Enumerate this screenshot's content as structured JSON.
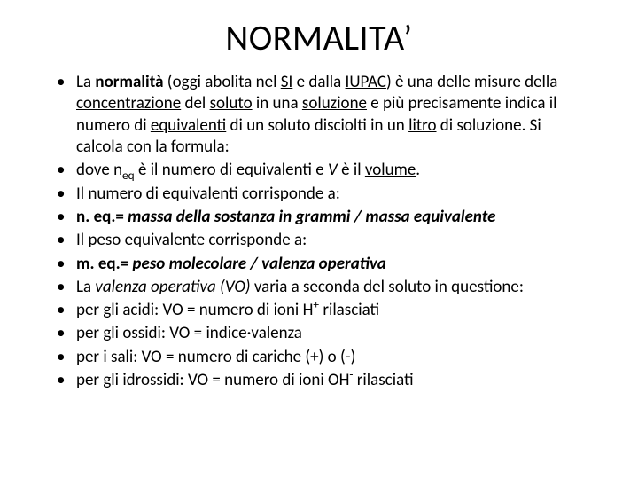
{
  "title": "NORMALITA’",
  "bullets": [
    {
      "parts": [
        {
          "t": "La "
        },
        {
          "t": "normalità",
          "b": true
        },
        {
          "t": " (oggi abolita nel "
        },
        {
          "t": "SI",
          "u": true
        },
        {
          "t": " e dalla "
        },
        {
          "t": "IUPAC",
          "u": true
        },
        {
          "t": ") è una delle misure della "
        },
        {
          "t": "concentrazione",
          "u": true
        },
        {
          "t": " del "
        },
        {
          "t": "soluto",
          "u": true
        },
        {
          "t": " in una "
        },
        {
          "t": "soluzione",
          "u": true
        },
        {
          "t": " e più precisamente indica il numero di "
        },
        {
          "t": "equivalenti",
          "u": true
        },
        {
          "t": " di un soluto disciolti in un "
        },
        {
          "t": "litro",
          "u": true
        },
        {
          "t": " di soluzione. Si calcola con la formula:"
        }
      ]
    },
    {
      "parts": [
        {
          "t": "dove n"
        },
        {
          "t": "eq",
          "sub": true
        },
        {
          "t": " è il numero di equivalenti e "
        },
        {
          "t": "V",
          "i": true
        },
        {
          "t": " è il "
        },
        {
          "t": "volume",
          "u": true
        },
        {
          "t": "."
        }
      ]
    },
    {
      "parts": [
        {
          "t": "Il numero di equivalenti corrisponde a:"
        }
      ]
    },
    {
      "parts": [
        {
          "t": " n. eq.= ",
          "b": true
        },
        {
          "t": "massa della sostanza in grammi / massa equivalente",
          "b": true,
          "i": true
        }
      ]
    },
    {
      "parts": [
        {
          "t": " Il peso equivalente corrisponde a:"
        }
      ]
    },
    {
      "parts": [
        {
          "t": "m. eq.= ",
          "b": true
        },
        {
          "t": "peso molecolare / valenza operativa",
          "b": true,
          "i": true
        }
      ]
    },
    {
      "parts": [
        {
          "t": " La "
        },
        {
          "t": "valenza operativa (VO)",
          "i": true
        },
        {
          "t": " varia a seconda del soluto in questione:"
        }
      ]
    },
    {
      "parts": [
        {
          "t": "per gli acidi: VO = numero di ioni H"
        },
        {
          "t": "+",
          "sup": true
        },
        {
          "t": " rilasciati"
        }
      ]
    },
    {
      "parts": [
        {
          "t": "per gli ossidi: VO = indice·valenza"
        }
      ]
    },
    {
      "parts": [
        {
          "t": "per i sali: VO = numero di cariche (+) o (-)"
        }
      ]
    },
    {
      "parts": [
        {
          "t": "per gli idrossidi: VO = numero di ioni OH"
        },
        {
          "t": "-",
          "sup": true
        },
        {
          "t": " rilasciati"
        }
      ]
    }
  ]
}
